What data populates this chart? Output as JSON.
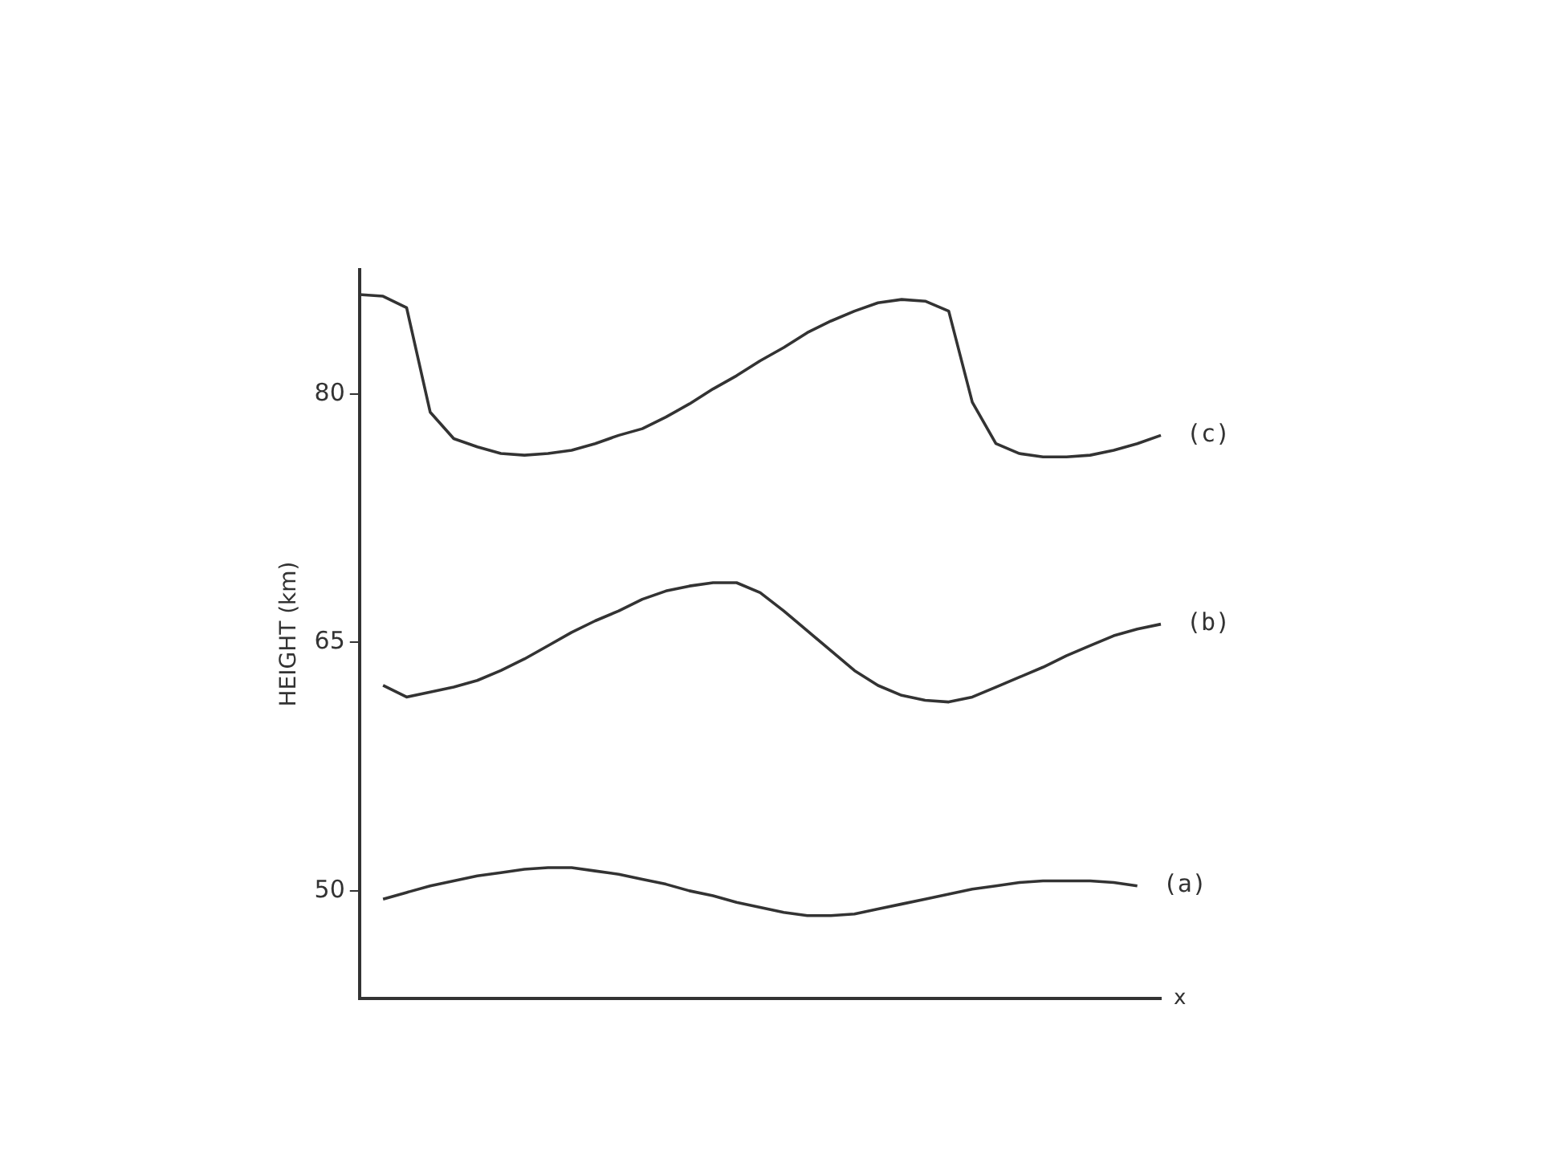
{
  "chart_data": {
    "type": "line",
    "ylabel": "HEIGHT (km)",
    "xlabel": "x",
    "categories": [
      null,
      null,
      null,
      null,
      null,
      null,
      null,
      null,
      null,
      null,
      null,
      null,
      null,
      null,
      null,
      null,
      null,
      null,
      null,
      null,
      null,
      null,
      null,
      null,
      null,
      null,
      null,
      null,
      null,
      null,
      null,
      null,
      null,
      null,
      null
    ],
    "ylim": [
      43.5,
      87.5
    ],
    "yticks": [
      50,
      65,
      80
    ],
    "tick_labels": "y",
    "grid": false,
    "legend": false,
    "marker": "none",
    "line_style": "solid",
    "series": [
      {
        "name": "(a)",
        "color": "#333333",
        "values": [
          null,
          49.5,
          49.9,
          50.3,
          50.6,
          50.9,
          51.1,
          51.3,
          51.4,
          51.4,
          51.2,
          51.0,
          50.7,
          50.4,
          50.0,
          49.7,
          49.3,
          49.0,
          48.7,
          48.5,
          48.5,
          48.6,
          48.9,
          49.2,
          49.5,
          49.8,
          50.1,
          50.3,
          50.5,
          50.6,
          50.6,
          50.6,
          50.5,
          50.3,
          null
        ]
      },
      {
        "name": "(b)",
        "color": "#333333",
        "values": [
          null,
          62.4,
          61.7,
          62.0,
          62.3,
          62.7,
          63.3,
          64.0,
          64.8,
          65.6,
          66.3,
          66.9,
          67.6,
          68.1,
          68.4,
          68.6,
          68.6,
          68.0,
          66.9,
          65.7,
          64.5,
          63.3,
          62.4,
          61.8,
          61.5,
          61.4,
          61.7,
          62.3,
          62.9,
          63.5,
          64.2,
          64.8,
          65.4,
          65.8,
          66.1
        ]
      },
      {
        "name": "(c)",
        "color": "#333333",
        "values": [
          86.0,
          85.9,
          85.2,
          78.9,
          77.3,
          76.8,
          76.4,
          76.3,
          76.4,
          76.6,
          77.0,
          77.5,
          77.9,
          78.6,
          79.4,
          80.3,
          81.1,
          82.0,
          82.8,
          83.7,
          84.4,
          85.0,
          85.5,
          85.7,
          85.6,
          85.0,
          79.5,
          77.0,
          76.4,
          76.2,
          76.2,
          76.3,
          76.6,
          77.0,
          77.5
        ]
      }
    ]
  }
}
